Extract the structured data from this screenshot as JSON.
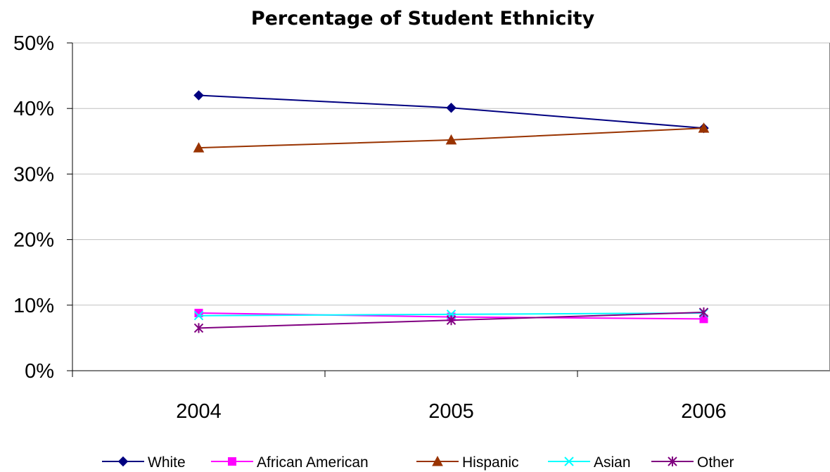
{
  "chart_data": {
    "type": "line",
    "title": "Percentage of Student Ethnicity",
    "categories": [
      "2004",
      "2005",
      "2006"
    ],
    "ylim": [
      0,
      50
    ],
    "yticks": [
      0,
      10,
      20,
      30,
      40,
      50
    ],
    "ytick_labels": [
      "0%",
      "10%",
      "20%",
      "30%",
      "40%",
      "50%"
    ],
    "grid": true,
    "legend_position": "bottom",
    "series": [
      {
        "name": "White",
        "values": [
          42,
          40.1,
          37
        ],
        "color": "#000080",
        "marker": "diamond"
      },
      {
        "name": "African American",
        "values": [
          8.8,
          8.2,
          7.9
        ],
        "color": "#ff00ff",
        "marker": "square"
      },
      {
        "name": "Hispanic",
        "values": [
          34,
          35.2,
          37
        ],
        "color": "#993300",
        "marker": "triangle"
      },
      {
        "name": "Asian",
        "values": [
          8.4,
          8.6,
          8.8
        ],
        "color": "#00ffff",
        "marker": "x"
      },
      {
        "name": "Other",
        "values": [
          6.5,
          7.7,
          8.9
        ],
        "color": "#800080",
        "marker": "star"
      }
    ]
  }
}
